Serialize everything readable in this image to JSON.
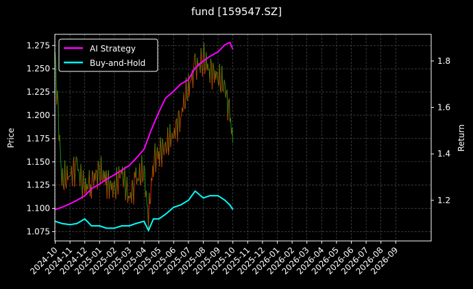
{
  "chart_data": {
    "type": "line",
    "title": "fund [159547.SZ]",
    "ylabel_left": "Price",
    "ylabel_right": "Return",
    "ylim_left": [
      1.065,
      1.287
    ],
    "ylim_right": [
      1.025,
      1.915
    ],
    "yticks_left": [
      "1.075",
      "1.100",
      "1.125",
      "1.150",
      "1.175",
      "1.200",
      "1.225",
      "1.250",
      "1.275"
    ],
    "yticks_right": [
      "1.2",
      "1.4",
      "1.6",
      "1.8"
    ],
    "xticks": [
      "2024-10",
      "2024-11",
      "2024-12",
      "2025-01",
      "2025-02",
      "2025-03",
      "2025-04",
      "2025-05",
      "2025-06",
      "2025-07",
      "2025-08",
      "2025-09",
      "2025-10",
      "2025-11",
      "2025-12",
      "2026-01",
      "2026-02",
      "2026-03",
      "2026-04",
      "2026-05",
      "2026-06",
      "2026-07",
      "2026-08",
      "2026-09"
    ],
    "grid": true,
    "legend_position": "top-left",
    "price_series": {
      "name": "Price",
      "up_color": "#ff2a00",
      "down_color": "#1fa80f",
      "x": [
        "2024-10",
        "2024-10-15",
        "2024-11",
        "2024-11-15",
        "2024-12",
        "2024-12-15",
        "2025-01",
        "2025-01-15",
        "2025-02",
        "2025-02-15",
        "2025-03",
        "2025-03-15",
        "2025-04",
        "2025-04-10",
        "2025-04-20",
        "2025-05",
        "2025-05-15",
        "2025-06",
        "2025-06-15",
        "2025-07",
        "2025-07-15",
        "2025-08",
        "2025-08-15",
        "2025-09",
        "2025-09-15",
        "2025-09-25",
        "2025-10"
      ],
      "y": [
        1.26,
        1.13,
        1.135,
        1.145,
        1.12,
        1.13,
        1.14,
        1.13,
        1.12,
        1.14,
        1.11,
        1.13,
        1.14,
        1.09,
        1.15,
        1.16,
        1.165,
        1.18,
        1.2,
        1.23,
        1.25,
        1.26,
        1.25,
        1.24,
        1.23,
        1.2,
        1.17
      ]
    },
    "series": [
      {
        "name": "AI Strategy",
        "color": "#ff00ff",
        "x": [
          "2024-10",
          "2024-10-15",
          "2024-11",
          "2024-11-15",
          "2024-12",
          "2024-12-15",
          "2025-01",
          "2025-01-15",
          "2025-02",
          "2025-02-15",
          "2025-03",
          "2025-03-15",
          "2025-04",
          "2025-04-15",
          "2025-05",
          "2025-05-15",
          "2025-06",
          "2025-06-15",
          "2025-07",
          "2025-07-15",
          "2025-08",
          "2025-08-15",
          "2025-09",
          "2025-09-15",
          "2025-09-25",
          "2025-10"
        ],
        "y": [
          1.16,
          1.17,
          1.185,
          1.2,
          1.22,
          1.25,
          1.27,
          1.29,
          1.31,
          1.33,
          1.35,
          1.38,
          1.42,
          1.5,
          1.58,
          1.64,
          1.67,
          1.7,
          1.72,
          1.77,
          1.8,
          1.82,
          1.84,
          1.87,
          1.88,
          1.85
        ]
      },
      {
        "name": "Buy-and-Hold",
        "color": "#00ffff",
        "x": [
          "2024-10",
          "2024-10-15",
          "2024-11",
          "2024-11-15",
          "2024-12",
          "2024-12-15",
          "2025-01",
          "2025-01-15",
          "2025-02",
          "2025-02-15",
          "2025-03",
          "2025-03-15",
          "2025-04",
          "2025-04-10",
          "2025-04-20",
          "2025-05",
          "2025-05-15",
          "2025-06",
          "2025-06-15",
          "2025-07",
          "2025-07-15",
          "2025-08",
          "2025-08-15",
          "2025-09",
          "2025-09-15",
          "2025-09-25",
          "2025-10"
        ],
        "y": [
          1.11,
          1.1,
          1.095,
          1.1,
          1.12,
          1.09,
          1.09,
          1.08,
          1.08,
          1.09,
          1.09,
          1.1,
          1.11,
          1.07,
          1.12,
          1.12,
          1.14,
          1.17,
          1.18,
          1.2,
          1.24,
          1.21,
          1.22,
          1.22,
          1.2,
          1.18,
          1.16
        ]
      }
    ]
  }
}
